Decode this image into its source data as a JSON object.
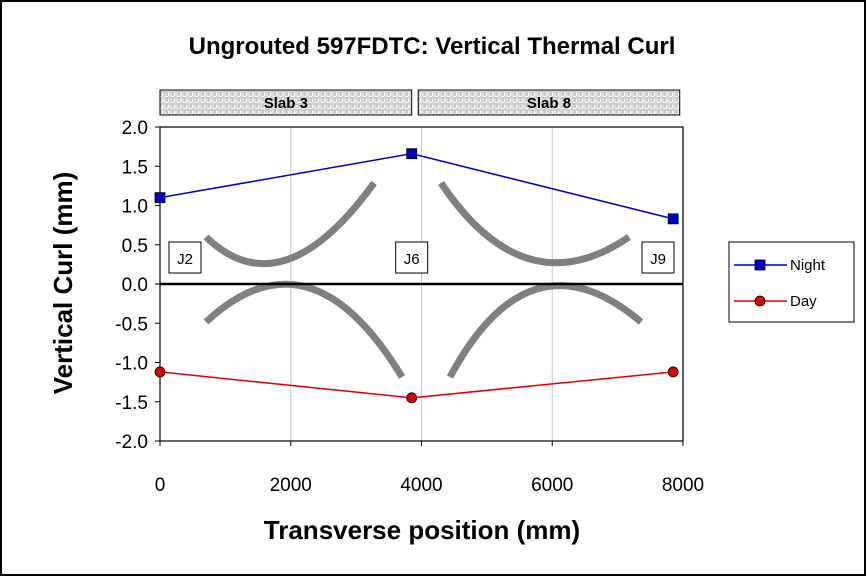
{
  "chart_data": {
    "type": "line",
    "title": "Ungrouted 597FDTC: Vertical Thermal Curl",
    "xlabel": "Transverse position (mm)",
    "ylabel": "Vertical Curl (mm)",
    "xlim": [
      0,
      8000
    ],
    "ylim": [
      -2.0,
      2.0
    ],
    "x_ticks": [
      "0",
      "2000",
      "4000",
      "6000",
      "8000"
    ],
    "y_ticks": [
      "2.0",
      "1.5",
      "1.0",
      "0.5",
      "0.0",
      "-0.5",
      "-1.0",
      "-1.5",
      "-2.0"
    ],
    "x_tick_values": [
      0,
      2000,
      4000,
      6000,
      8000
    ],
    "y_tick_values": [
      2.0,
      1.5,
      1.0,
      0.5,
      0.0,
      -0.5,
      -1.0,
      -1.5,
      -2.0
    ],
    "grid": "vertical",
    "legend_position": "right",
    "series": [
      {
        "name": "Night",
        "color": "#0000cc",
        "marker": "square",
        "x": [
          0,
          3850,
          7850
        ],
        "y": [
          1.1,
          1.66,
          0.83
        ]
      },
      {
        "name": "Day",
        "color": "#dd0000",
        "marker": "circle",
        "x": [
          0,
          3850,
          7850
        ],
        "y": [
          -1.12,
          -1.45,
          -1.12
        ]
      }
    ],
    "slabs": [
      {
        "label": "Slab 3",
        "x_range": [
          0,
          3850
        ]
      },
      {
        "label": "Slab 8",
        "x_range": [
          3950,
          7950
        ]
      }
    ],
    "joints": [
      {
        "label": "J2",
        "x": 0
      },
      {
        "label": "J6",
        "x": 3850
      },
      {
        "label": "J9",
        "x": 7850
      }
    ]
  }
}
